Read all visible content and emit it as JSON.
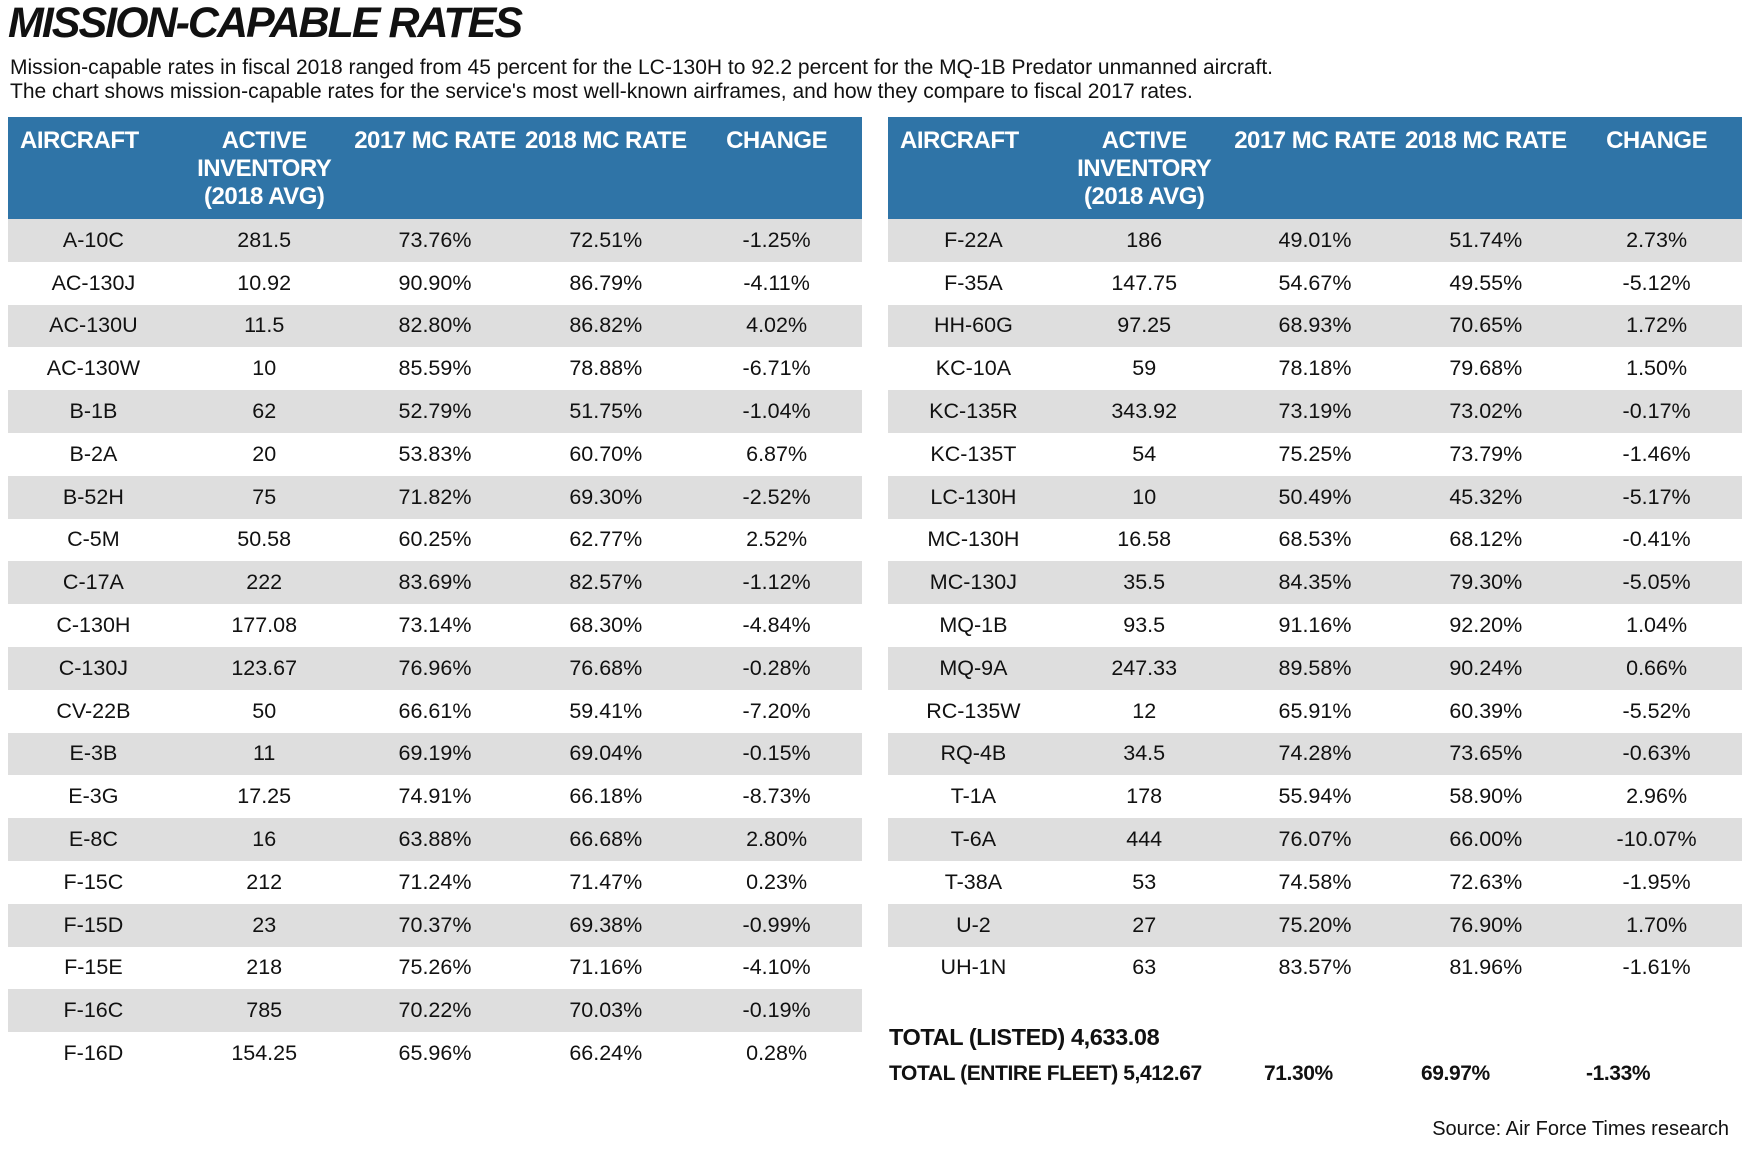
{
  "title": "MISSION-CAPABLE RATES",
  "subtitle": [
    "Mission-capable rates in fiscal 2018 ranged from 45 percent for the LC-130H  to 92.2 percent for the MQ-1B Predator unmanned aircraft.",
    "The chart shows mission-capable rates for the service's most well-known airframes, and how they compare to fiscal 2017 rates."
  ],
  "columns": [
    "AIRCRAFT",
    "ACTIVE INVENTORY (2018 AVG)",
    "2017 MC RATE",
    "2018 MC RATE",
    "CHANGE"
  ],
  "header_color": "#2f74a7",
  "left_rows": [
    [
      "A-10C",
      "281.5",
      "73.76%",
      "72.51%",
      "-1.25%"
    ],
    [
      "AC-130J",
      "10.92",
      "90.90%",
      "86.79%",
      "-4.11%"
    ],
    [
      "AC-130U",
      "11.5",
      "82.80%",
      "86.82%",
      "4.02%"
    ],
    [
      "AC-130W",
      "10",
      "85.59%",
      "78.88%",
      "-6.71%"
    ],
    [
      "B-1B",
      "62",
      "52.79%",
      "51.75%",
      "-1.04%"
    ],
    [
      "B-2A",
      "20",
      "53.83%",
      "60.70%",
      "6.87%"
    ],
    [
      "B-52H",
      "75",
      "71.82%",
      "69.30%",
      "-2.52%"
    ],
    [
      "C-5M",
      "50.58",
      "60.25%",
      "62.77%",
      "2.52%"
    ],
    [
      "C-17A",
      "222",
      "83.69%",
      "82.57%",
      "-1.12%"
    ],
    [
      "C-130H",
      "177.08",
      "73.14%",
      "68.30%",
      "-4.84%"
    ],
    [
      "C-130J",
      "123.67",
      "76.96%",
      "76.68%",
      "-0.28%"
    ],
    [
      "CV-22B",
      "50",
      "66.61%",
      "59.41%",
      "-7.20%"
    ],
    [
      "E-3B",
      "11",
      "69.19%",
      "69.04%",
      "-0.15%"
    ],
    [
      "E-3G",
      "17.25",
      "74.91%",
      "66.18%",
      "-8.73%"
    ],
    [
      "E-8C",
      "16",
      "63.88%",
      "66.68%",
      "2.80%"
    ],
    [
      "F-15C",
      "212",
      "71.24%",
      "71.47%",
      "0.23%"
    ],
    [
      "F-15D",
      "23",
      "70.37%",
      "69.38%",
      "-0.99%"
    ],
    [
      "F-15E",
      "218",
      "75.26%",
      "71.16%",
      "-4.10%"
    ],
    [
      "F-16C",
      "785",
      "70.22%",
      "70.03%",
      "-0.19%"
    ],
    [
      "F-16D",
      "154.25",
      "65.96%",
      "66.24%",
      "0.28%"
    ]
  ],
  "right_rows": [
    [
      "F-22A",
      "186",
      "49.01%",
      "51.74%",
      "2.73%"
    ],
    [
      "F-35A",
      "147.75",
      "54.67%",
      "49.55%",
      "-5.12%"
    ],
    [
      "HH-60G",
      "97.25",
      "68.93%",
      "70.65%",
      "1.72%"
    ],
    [
      "KC-10A",
      "59",
      "78.18%",
      "79.68%",
      "1.50%"
    ],
    [
      "KC-135R",
      "343.92",
      "73.19%",
      "73.02%",
      "-0.17%"
    ],
    [
      "KC-135T",
      "54",
      "75.25%",
      "73.79%",
      "-1.46%"
    ],
    [
      "LC-130H",
      "10",
      "50.49%",
      "45.32%",
      "-5.17%"
    ],
    [
      "MC-130H",
      "16.58",
      "68.53%",
      "68.12%",
      "-0.41%"
    ],
    [
      "MC-130J",
      "35.5",
      "84.35%",
      "79.30%",
      "-5.05%"
    ],
    [
      "MQ-1B",
      "93.5",
      "91.16%",
      "92.20%",
      "1.04%"
    ],
    [
      "MQ-9A",
      "247.33",
      "89.58%",
      "90.24%",
      "0.66%"
    ],
    [
      "RC-135W",
      "12",
      "65.91%",
      "60.39%",
      "-5.52%"
    ],
    [
      "RQ-4B",
      "34.5",
      "74.28%",
      "73.65%",
      "-0.63%"
    ],
    [
      "T-1A",
      "178",
      "55.94%",
      "58.90%",
      "2.96%"
    ],
    [
      "T-6A",
      "444",
      "76.07%",
      "66.00%",
      "-10.07%"
    ],
    [
      "T-38A",
      "53",
      "74.58%",
      "72.63%",
      "-1.95%"
    ],
    [
      "U-2",
      "27",
      "75.20%",
      "76.90%",
      "1.70%"
    ],
    [
      "UH-1N",
      "63",
      "83.57%",
      "81.96%",
      "-1.61%"
    ]
  ],
  "totals": {
    "listed": "TOTAL (LISTED) 4,633.08",
    "fleet_label": "TOTAL (ENTIRE FLEET) 5,412.67",
    "fleet_2017": "71.30%",
    "fleet_2018": "69.97%",
    "fleet_change": "-1.33%"
  },
  "source": "Source: Air Force Times research"
}
